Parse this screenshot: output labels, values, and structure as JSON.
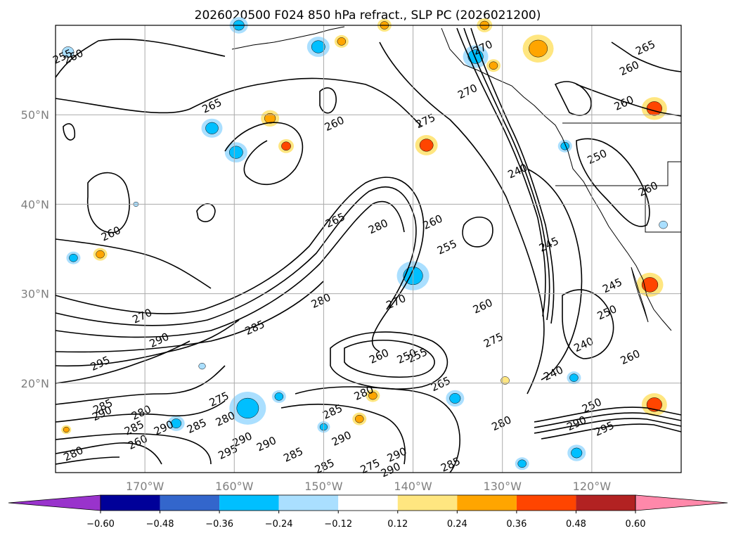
{
  "chart_data": {
    "type": "contour-map",
    "title": "2026020500 F024 850 hPa refract., SLP PC (2026021200)",
    "lon_range": [
      -180,
      -110
    ],
    "lat_range": [
      10,
      60
    ],
    "grid": true,
    "x_ticks": [
      {
        "lon": -170,
        "label": "170°W"
      },
      {
        "lon": -160,
        "label": "160°W"
      },
      {
        "lon": -150,
        "label": "150°W"
      },
      {
        "lon": -140,
        "label": "140°W"
      },
      {
        "lon": -130,
        "label": "130°W"
      },
      {
        "lon": -120,
        "label": "120°W"
      }
    ],
    "y_ticks": [
      {
        "lat": 20,
        "label": "20°N"
      },
      {
        "lat": 30,
        "label": "30°N"
      },
      {
        "lat": 40,
        "label": "40°N"
      },
      {
        "lat": 50,
        "label": "50°N"
      }
    ],
    "colorbar": {
      "extend": "both",
      "tick_labels": [
        "−0.60",
        "−0.48",
        "−0.36",
        "−0.24",
        "−0.12",
        "0.12",
        "0.24",
        "0.36",
        "0.48",
        "0.60"
      ],
      "bins": [
        {
          "lower": null,
          "upper": -0.6,
          "color": "#9933cc"
        },
        {
          "lower": -0.6,
          "upper": -0.48,
          "color": "#000099"
        },
        {
          "lower": -0.48,
          "upper": -0.36,
          "color": "#3366cc"
        },
        {
          "lower": -0.36,
          "upper": -0.24,
          "color": "#00bfff"
        },
        {
          "lower": -0.24,
          "upper": -0.12,
          "color": "#aadfff"
        },
        {
          "lower": -0.12,
          "upper": 0.12,
          "color": "#ffffff"
        },
        {
          "lower": 0.12,
          "upper": 0.24,
          "color": "#ffe680"
        },
        {
          "lower": 0.24,
          "upper": 0.36,
          "color": "#ffa500"
        },
        {
          "lower": 0.36,
          "upper": 0.48,
          "color": "#ff4500"
        },
        {
          "lower": 0.48,
          "upper": 0.6,
          "color": "#b22222"
        },
        {
          "lower": 0.6,
          "upper": null,
          "color": "#ff88aa"
        }
      ]
    },
    "contour_levels": [
      240,
      245,
      250,
      255,
      260,
      265,
      270,
      275,
      280,
      285,
      290,
      295
    ],
    "contour_labels": [
      {
        "text": "260",
        "lon": -178.0,
        "lat": 56.5
      },
      {
        "text": "255",
        "lon": -179.2,
        "lat": 56.5
      },
      {
        "text": "265",
        "lon": -162.5,
        "lat": 51.0
      },
      {
        "text": "260",
        "lon": -148.8,
        "lat": 49.0
      },
      {
        "text": "275",
        "lon": -138.6,
        "lat": 49.3
      },
      {
        "text": "270",
        "lon": -132.2,
        "lat": 57.5
      },
      {
        "text": "270",
        "lon": -133.9,
        "lat": 52.6
      },
      {
        "text": "265",
        "lon": -114.0,
        "lat": 57.5
      },
      {
        "text": "260",
        "lon": -115.8,
        "lat": 55.2
      },
      {
        "text": "260",
        "lon": -116.4,
        "lat": 51.3
      },
      {
        "text": "250",
        "lon": -119.4,
        "lat": 45.3
      },
      {
        "text": "240",
        "lon": -128.3,
        "lat": 43.7
      },
      {
        "text": "260",
        "lon": -113.7,
        "lat": 41.7
      },
      {
        "text": "260",
        "lon": -173.8,
        "lat": 36.7
      },
      {
        "text": "265",
        "lon": -148.7,
        "lat": 38.2
      },
      {
        "text": "280",
        "lon": -143.9,
        "lat": 37.5
      },
      {
        "text": "260",
        "lon": -137.8,
        "lat": 38.0
      },
      {
        "text": "255",
        "lon": -136.2,
        "lat": 35.2
      },
      {
        "text": "245",
        "lon": -124.8,
        "lat": 35.5
      },
      {
        "text": "245",
        "lon": -117.7,
        "lat": 30.9
      },
      {
        "text": "280",
        "lon": -150.3,
        "lat": 29.2
      },
      {
        "text": "270",
        "lon": -141.9,
        "lat": 29.1
      },
      {
        "text": "260",
        "lon": -132.2,
        "lat": 28.6
      },
      {
        "text": "250",
        "lon": -118.3,
        "lat": 27.9
      },
      {
        "text": "270",
        "lon": -170.3,
        "lat": 27.5
      },
      {
        "text": "285",
        "lon": -157.7,
        "lat": 26.2
      },
      {
        "text": "290",
        "lon": -168.4,
        "lat": 24.8
      },
      {
        "text": "275",
        "lon": -131.0,
        "lat": 24.8
      },
      {
        "text": "240",
        "lon": -120.9,
        "lat": 24.3
      },
      {
        "text": "295",
        "lon": -175.0,
        "lat": 22.2
      },
      {
        "text": "260",
        "lon": -143.8,
        "lat": 23.0
      },
      {
        "text": "250",
        "lon": -140.7,
        "lat": 23.0
      },
      {
        "text": "255",
        "lon": -139.5,
        "lat": 23.1
      },
      {
        "text": "260",
        "lon": -115.7,
        "lat": 22.9
      },
      {
        "text": "240",
        "lon": -124.3,
        "lat": 21.1
      },
      {
        "text": "265",
        "lon": -136.9,
        "lat": 19.9
      },
      {
        "text": "280",
        "lon": -145.5,
        "lat": 18.9
      },
      {
        "text": "275",
        "lon": -161.7,
        "lat": 18.2
      },
      {
        "text": "285",
        "lon": -174.7,
        "lat": 17.4
      },
      {
        "text": "290",
        "lon": -174.8,
        "lat": 16.6
      },
      {
        "text": "280",
        "lon": -170.4,
        "lat": 16.7
      },
      {
        "text": "285",
        "lon": -149.0,
        "lat": 16.8
      },
      {
        "text": "250",
        "lon": -120.0,
        "lat": 17.5
      },
      {
        "text": "280",
        "lon": -130.1,
        "lat": 15.5
      },
      {
        "text": "290",
        "lon": -121.7,
        "lat": 15.5
      },
      {
        "text": "295",
        "lon": -118.6,
        "lat": 14.9
      },
      {
        "text": "285",
        "lon": -171.2,
        "lat": 15.0
      },
      {
        "text": "290",
        "lon": -167.9,
        "lat": 15.0
      },
      {
        "text": "285",
        "lon": -164.2,
        "lat": 15.2
      },
      {
        "text": "290",
        "lon": -148.0,
        "lat": 13.8
      },
      {
        "text": "280",
        "lon": -178.0,
        "lat": 12.1
      },
      {
        "text": "260",
        "lon": -170.8,
        "lat": 13.4
      },
      {
        "text": "290",
        "lon": -159.1,
        "lat": 13.7
      },
      {
        "text": "295",
        "lon": -160.7,
        "lat": 12.3
      },
      {
        "text": "290",
        "lon": -156.4,
        "lat": 13.2
      },
      {
        "text": "285",
        "lon": -153.4,
        "lat": 12.0
      },
      {
        "text": "290",
        "lon": -141.8,
        "lat": 12.0
      },
      {
        "text": "285",
        "lon": -135.8,
        "lat": 10.9
      },
      {
        "text": "285",
        "lon": -149.9,
        "lat": 10.7
      },
      {
        "text": "275",
        "lon": -144.8,
        "lat": 10.7
      },
      {
        "text": "290",
        "lon": -142.5,
        "lat": 10.3
      },
      {
        "text": "280",
        "lon": -161.0,
        "lat": 16.0
      }
    ]
  }
}
